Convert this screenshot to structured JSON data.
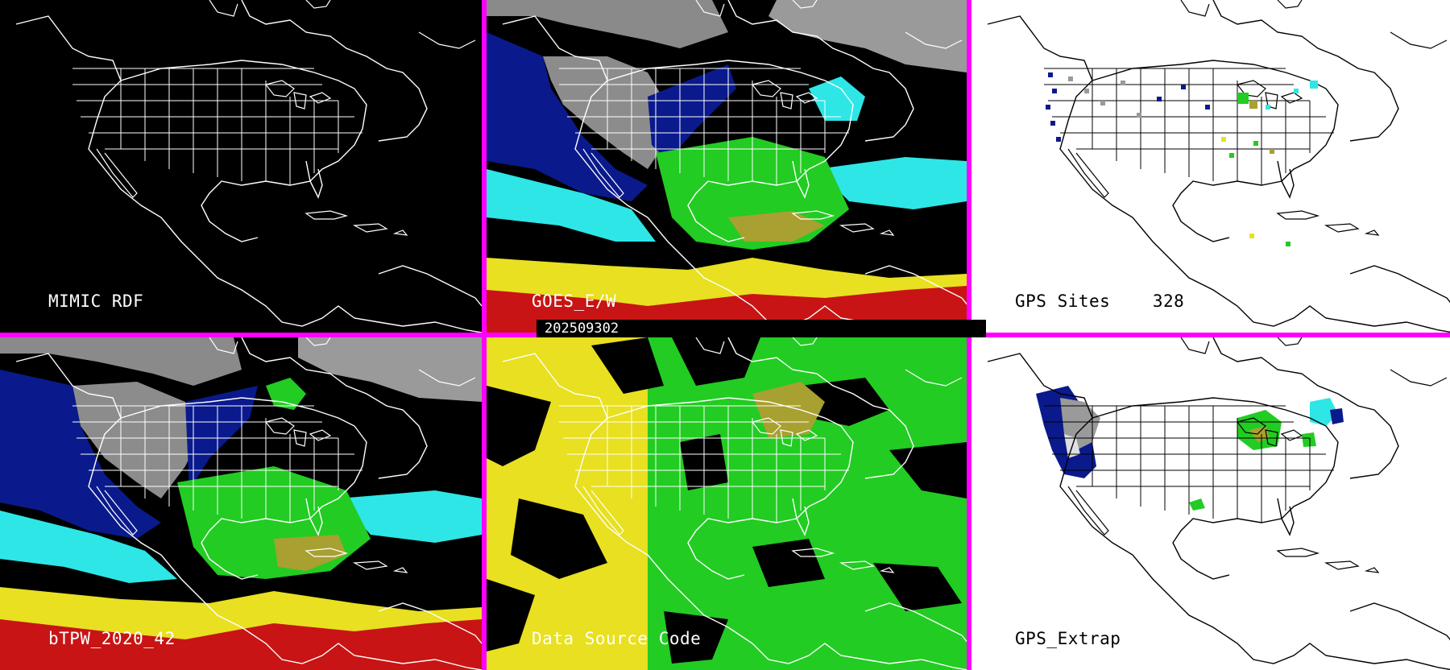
{
  "panels": [
    {
      "id": "p1",
      "label": "MIMIC RDF"
    },
    {
      "id": "p2",
      "label": "GOES_E/W"
    },
    {
      "id": "p3",
      "label": "GPS Sites    328"
    },
    {
      "id": "p4",
      "label": "bTPW_2020_42"
    },
    {
      "id": "p5",
      "label": "Data Source Code"
    },
    {
      "id": "p6",
      "label": "GPS_Extrap"
    }
  ],
  "timestamp": "202509302",
  "colors": {
    "divider": "#ff00ff",
    "dark_bg": "#000000",
    "light_bg": "#ffffff",
    "dry_grey": "#9a9a9a",
    "navy": "#0a1a8c",
    "cyan": "#2ee6e6",
    "green": "#22cc22",
    "olive": "#a8a030",
    "yellow": "#e8e020",
    "red": "#c81414"
  }
}
